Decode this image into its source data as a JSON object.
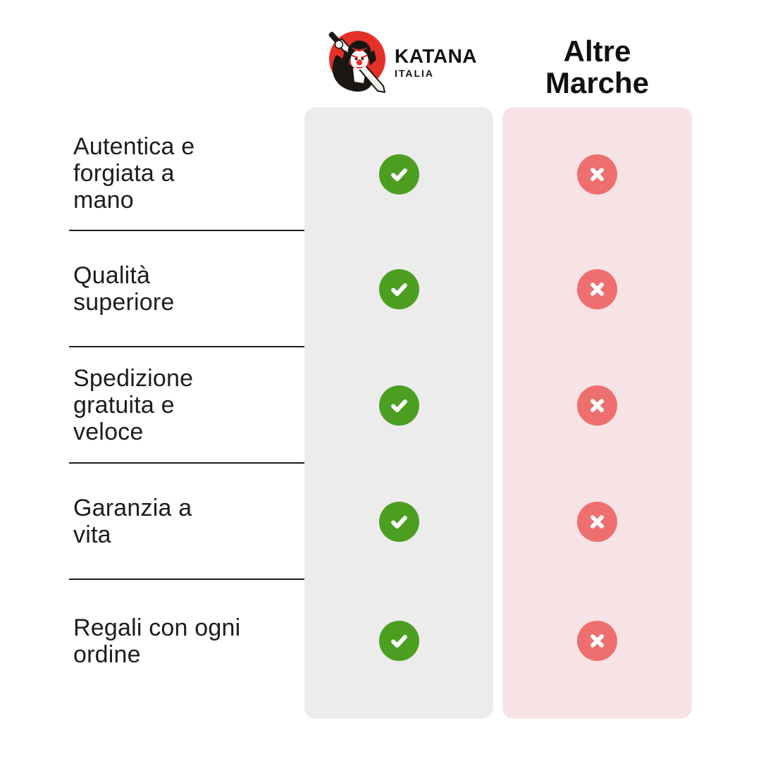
{
  "theme": {
    "bg": "#ffffff",
    "brand-col-bg": "#ececec",
    "competitor-col-bg": "#f7e3e5",
    "check-green": "#4c9e20",
    "cross-red": "#ef6f6e",
    "text": "#1d1d1d",
    "divider": "#1f1f1f",
    "logo-red": "#e53028",
    "logo-black": "#1a1713"
  },
  "header": {
    "brand": {
      "name": "KATANA",
      "sub": "ITALIA",
      "logo": "samurai-katana-logo-icon"
    },
    "competitor": {
      "title": "Altre\nMarche"
    }
  },
  "icons": {
    "check": {
      "name": "check-icon",
      "color": "#4c9e20"
    },
    "cross": {
      "name": "cross-icon",
      "color": "#ef6f6e"
    }
  },
  "rows": [
    {
      "label": "Autentica e\nforgiata a\nmano",
      "brand": "check",
      "competitor": "cross"
    },
    {
      "label": "Qualità\nsuperiore",
      "brand": "check",
      "competitor": "cross"
    },
    {
      "label": "Spedizione\ngratuita e\nveloce",
      "brand": "check",
      "competitor": "cross"
    },
    {
      "label": "Garanzia a\nvita",
      "brand": "check",
      "competitor": "cross"
    },
    {
      "label": "Regali con ogni\nordine",
      "brand": "check",
      "competitor": "cross"
    }
  ]
}
